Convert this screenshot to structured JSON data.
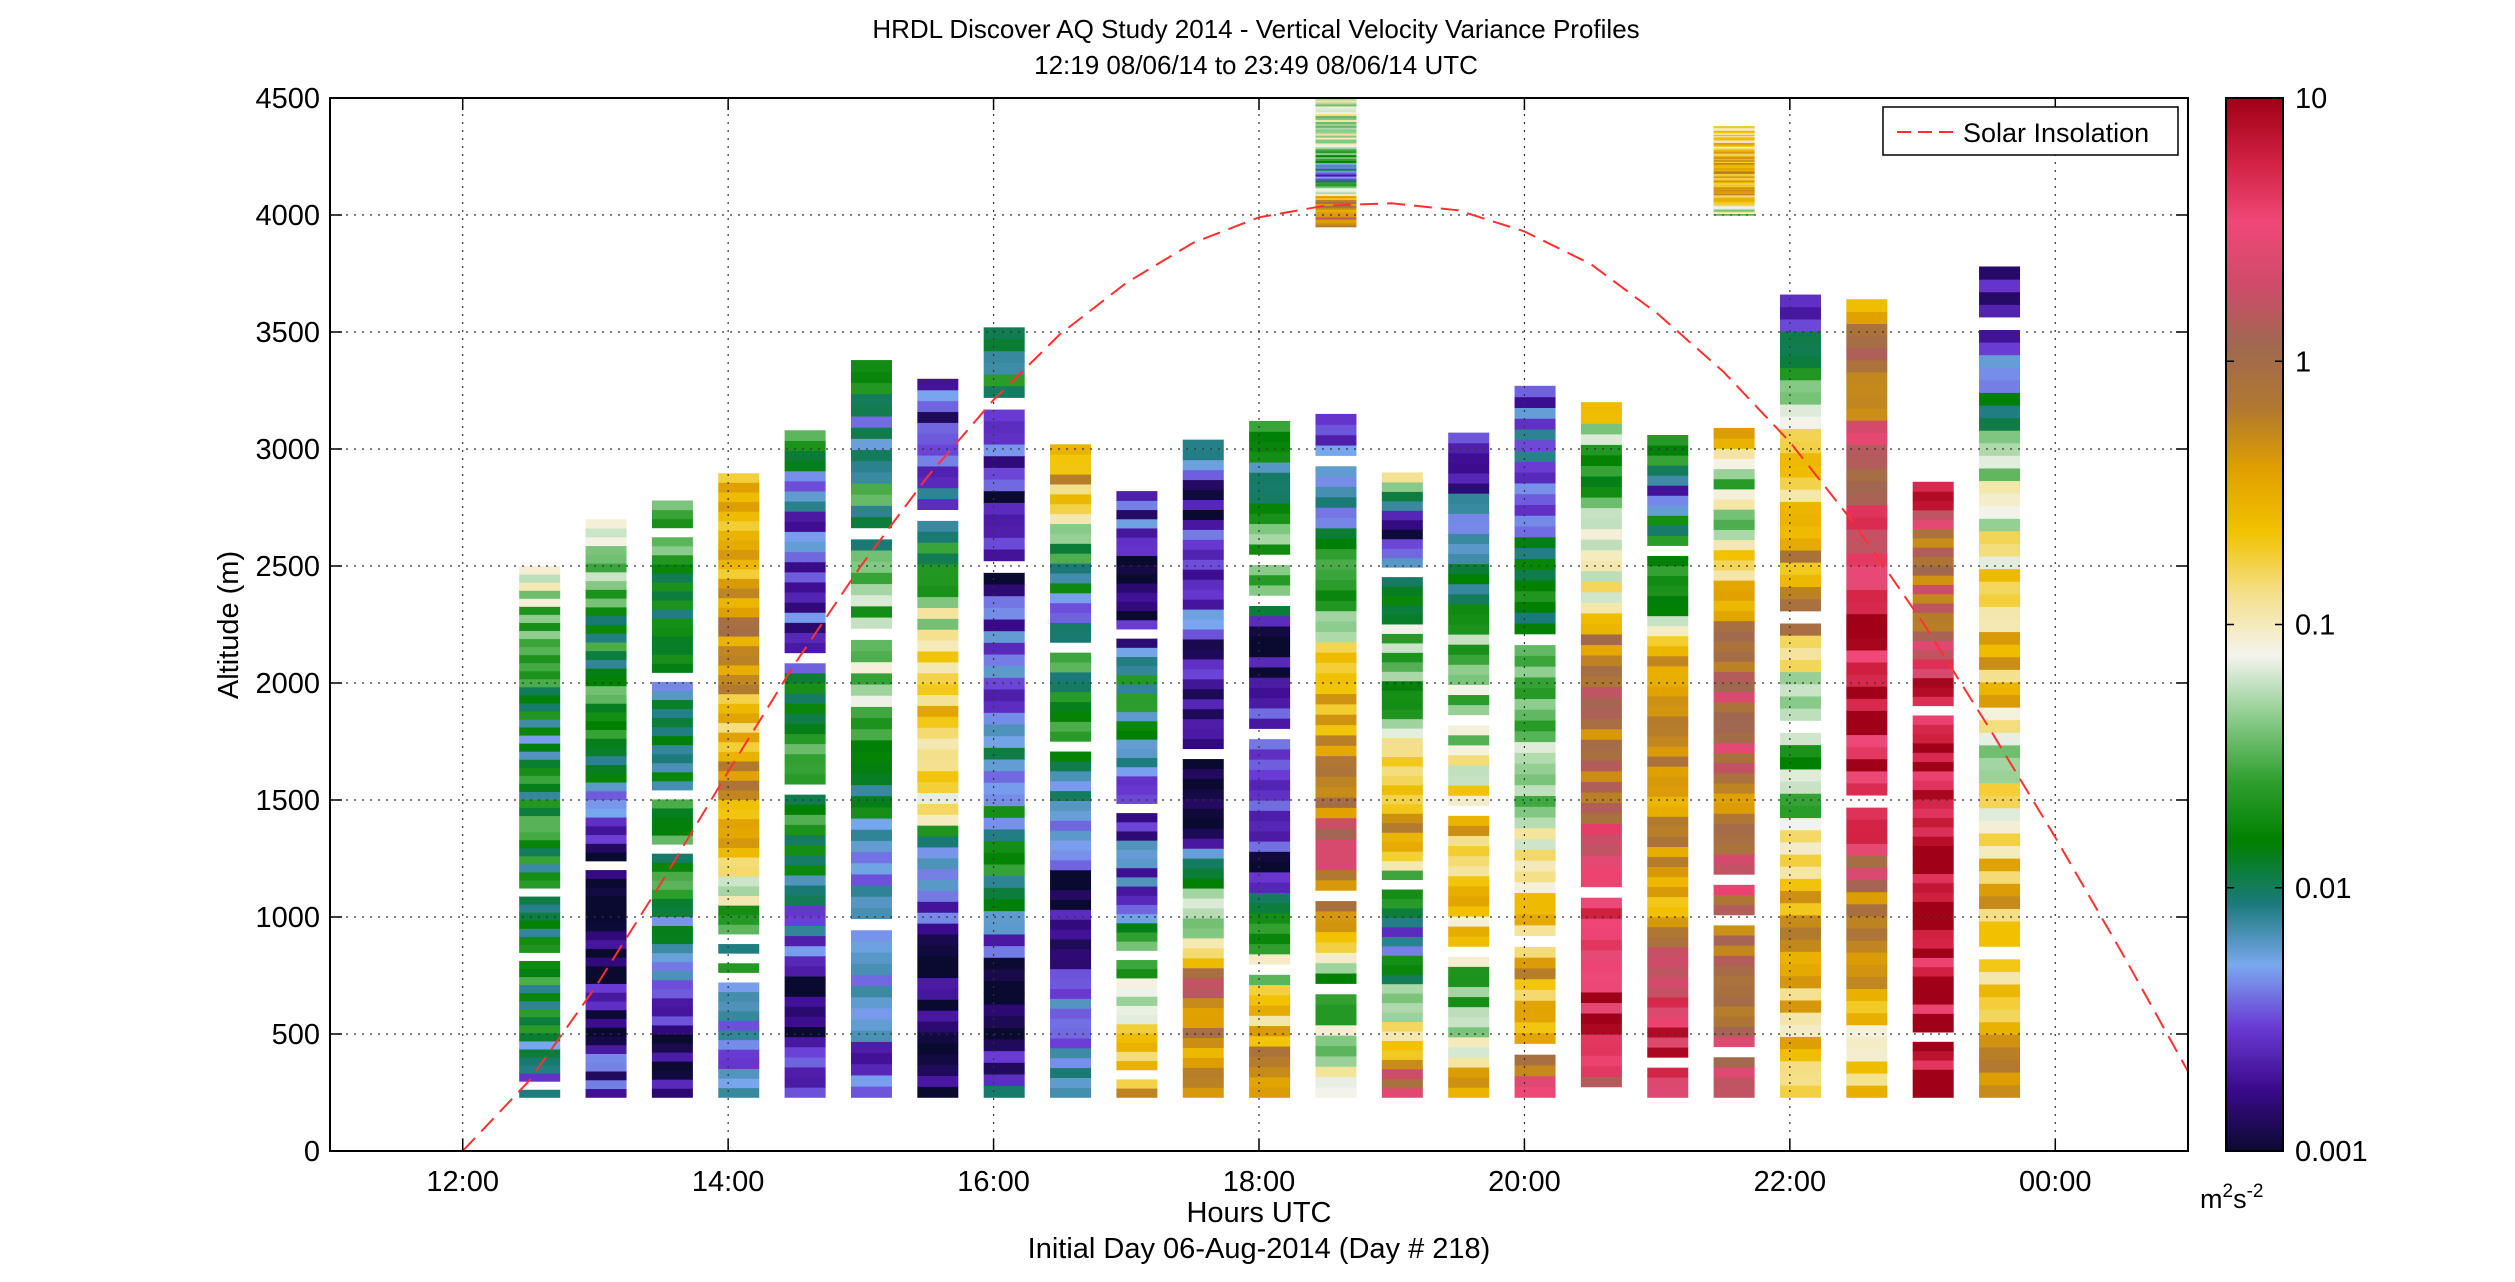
{
  "chart_data": {
    "type": "heatmap",
    "title": [
      "HRDL Discover AQ Study 2014 - Vertical Velocity Variance Profiles",
      "12:19 08/06/14 to 23:49 08/06/14  UTC"
    ],
    "xlabel": "Hours UTC",
    "xlabel2": "Initial Day 06-Aug-2014 (Day # 218)",
    "ylabel": "Altitude (m)",
    "xlim": [
      11.0,
      25.0
    ],
    "ylim": [
      0,
      4500
    ],
    "x_ticks": [
      12,
      14,
      16,
      18,
      20,
      22,
      24
    ],
    "x_tick_labels": [
      "12:00",
      "14:00",
      "16:00",
      "18:00",
      "20:00",
      "22:00",
      "00:00"
    ],
    "y_ticks": [
      0,
      500,
      1000,
      1500,
      2000,
      2500,
      3000,
      3500,
      4000,
      4500
    ],
    "y_tick_labels": [
      "0",
      "500",
      "1000",
      "1500",
      "2000",
      "2500",
      "3000",
      "3500",
      "4000",
      "4500"
    ],
    "grid": true,
    "colorbar": {
      "scale": "log",
      "range": [
        0.001,
        10
      ],
      "ticks": [
        0.001,
        0.01,
        0.1,
        1,
        10
      ],
      "tick_labels": [
        "0.001",
        "0.01",
        "0.1",
        "1",
        "10"
      ],
      "unit_base": "m",
      "unit_exp1": "2",
      "unit_mid": "s",
      "unit_exp2": "-2",
      "colors": [
        "#0a0a30",
        "#3a0a8c",
        "#6a3ad4",
        "#7aa8f0",
        "#1a7a7a",
        "#008000",
        "#30a030",
        "#8ccc8c",
        "#f4f4ee",
        "#f4e08a",
        "#f2c200",
        "#e0a000",
        "#b07830",
        "#a06850",
        "#d04a6a",
        "#f04878",
        "#d02040",
        "#a00018"
      ]
    },
    "legend": {
      "position": "top-right",
      "entries": [
        {
          "label": "Solar Insolation",
          "style": "dashed",
          "color": "#ff4040"
        }
      ]
    },
    "profiles": [
      {
        "time": 12.58,
        "bottom": 230,
        "top": 2500,
        "levels": [
          0.004,
          0.01,
          0.015,
          0.02,
          0.015,
          0.012,
          0.02,
          0.015,
          0.006,
          0.02,
          0.03,
          0.04,
          0.06
        ]
      },
      {
        "time": 13.08,
        "bottom": 230,
        "top": 2700,
        "levels": [
          0.004,
          0.002,
          0.0015,
          0.001,
          0.001,
          0.0012,
          0.003,
          0.012,
          0.02,
          0.015,
          0.02,
          0.03,
          0.08
        ]
      },
      {
        "time": 13.58,
        "bottom": 230,
        "top": 2780,
        "levels": [
          0.0012,
          0.001,
          0.003,
          0.006,
          0.015,
          0.02,
          0.015,
          0.01,
          0.006,
          0.02,
          0.015,
          0.02,
          0.05
        ]
      },
      {
        "time": 14.08,
        "bottom": 230,
        "top": 2940,
        "levels": [
          0.004,
          0.003,
          0.01,
          0.012,
          0.1,
          0.4,
          0.35,
          0.3,
          0.4,
          0.5,
          0.3,
          0.25,
          0.15
        ]
      },
      {
        "time": 14.58,
        "bottom": 230,
        "top": 3080,
        "levels": [
          0.002,
          0.0015,
          0.001,
          0.004,
          0.01,
          0.02,
          0.03,
          0.02,
          0.003,
          0.002,
          0.003,
          0.004,
          0.05
        ]
      },
      {
        "time": 15.08,
        "bottom": 230,
        "top": 3380,
        "levels": [
          0.002,
          0.003,
          0.004,
          0.004,
          0.006,
          0.015,
          0.02,
          0.06,
          0.04,
          0.02,
          0.015,
          0.004,
          0.05
        ]
      },
      {
        "time": 15.58,
        "bottom": 230,
        "top": 3300,
        "levels": [
          0.0012,
          0.0011,
          0.001,
          0.002,
          0.008,
          0.12,
          0.25,
          0.15,
          0.06,
          0.02,
          0.005,
          0.003,
          0.002
        ]
      },
      {
        "time": 16.08,
        "bottom": 230,
        "top": 3520,
        "levels": [
          0.005,
          0.001,
          0.001,
          0.02,
          0.012,
          0.006,
          0.005,
          0.003,
          0.002,
          0.0012,
          0.003,
          0.01,
          0.02
        ]
      },
      {
        "time": 16.58,
        "bottom": 230,
        "top": 3020,
        "levels": [
          0.015,
          0.004,
          0.003,
          0.002,
          0.001,
          0.006,
          0.012,
          0.02,
          0.015,
          0.005,
          0.02,
          0.25,
          0.5
        ]
      },
      {
        "time": 17.08,
        "bottom": 230,
        "top": 2820,
        "levels": [
          0.3,
          0.25,
          0.06,
          0.02,
          0.004,
          0.003,
          0.003,
          0.006,
          0.02,
          0.003,
          0.0015,
          0.002,
          0.004
        ]
      },
      {
        "time": 17.58,
        "bottom": 230,
        "top": 3040,
        "levels": [
          0.8,
          0.5,
          1.2,
          0.06,
          0.02,
          0.001,
          0.001,
          0.001,
          0.002,
          0.003,
          0.002,
          0.0015,
          0.01
        ]
      },
      {
        "time": 18.08,
        "bottom": 230,
        "top": 3120,
        "levels": [
          0.3,
          0.4,
          0.08,
          0.02,
          0.002,
          0.002,
          0.003,
          0.0015,
          0.001,
          0.02,
          0.03,
          0.006,
          0.04
        ]
      },
      {
        "time": 18.58,
        "bottom": 230,
        "top": 3150,
        "levels": [
          0.08,
          0.06,
          0.02,
          0.5,
          1.2,
          0.8,
          0.4,
          0.3,
          0.08,
          0.02,
          0.01,
          0.003,
          0.002
        ]
      },
      {
        "time": 19.08,
        "bottom": 230,
        "top": 2900,
        "levels": [
          2.5,
          0.3,
          0.04,
          0.004,
          0.02,
          0.3,
          0.4,
          0.06,
          0.03,
          0.04,
          0.005,
          0.001,
          0.15
        ]
      },
      {
        "time": 19.58,
        "bottom": 230,
        "top": 3070,
        "levels": [
          0.4,
          0.1,
          0.03,
          0.15,
          0.2,
          0.3,
          0.08,
          0.05,
          0.03,
          0.02,
          0.006,
          0.003,
          0.002
        ]
      },
      {
        "time": 20.08,
        "bottom": 230,
        "top": 3270,
        "levels": [
          3.0,
          0.2,
          0.3,
          0.25,
          0.08,
          0.06,
          0.04,
          0.03,
          0.02,
          0.015,
          0.004,
          0.005,
          0.002
        ]
      },
      {
        "time": 20.58,
        "bottom": 230,
        "top": 3200,
        "levels": [
          1.5,
          6.0,
          5.0,
          3.0,
          3.0,
          1.5,
          0.8,
          1.0,
          0.5,
          0.05,
          0.06,
          0.01,
          0.4
        ]
      },
      {
        "time": 21.08,
        "bottom": 230,
        "top": 3060,
        "levels": [
          5.0,
          4.0,
          3.0,
          0.5,
          0.3,
          0.4,
          0.8,
          0.4,
          0.3,
          0.02,
          0.02,
          0.004,
          0.03
        ]
      },
      {
        "time": 21.58,
        "bottom": 230,
        "top": 3090,
        "levels": [
          3.0,
          2.0,
          0.8,
          1.0,
          2.0,
          0.6,
          1.5,
          1.2,
          0.8,
          0.4,
          0.06,
          0.05,
          0.3
        ]
      },
      {
        "time": 22.08,
        "bottom": 230,
        "top": 3660,
        "levels": [
          0.3,
          0.2,
          0.3,
          0.4,
          0.06,
          0.03,
          0.04,
          0.5,
          0.4,
          0.2,
          0.08,
          0.02,
          0.002
        ]
      },
      {
        "time": 22.58,
        "bottom": 230,
        "top": 3640,
        "levels": [
          0.2,
          0.12,
          0.4,
          0.5,
          4.0,
          6.0,
          8.0,
          7.0,
          3.0,
          2.5,
          1.2,
          0.8,
          0.3
        ]
      },
      {
        "time": 23.08,
        "bottom": 230,
        "top": 2860,
        "levels": [
          8.0,
          8.0,
          8.0,
          8.0,
          8.0,
          8.0,
          8.0,
          8.0,
          6.0,
          1.5,
          0.8,
          1.0,
          9.0
        ]
      },
      {
        "time": 23.58,
        "bottom": 230,
        "top": 3780,
        "levels": [
          0.3,
          0.4,
          0.2,
          0.3,
          0.12,
          0.06,
          0.3,
          0.2,
          0.08,
          0.06,
          0.01,
          0.004,
          0.001
        ]
      }
    ],
    "upper_patches": [
      {
        "time": 18.58,
        "bottom": 3950,
        "top": 4500,
        "levels": [
          1.0,
          0.5,
          0.003,
          0.05,
          0.08,
          0.06
        ]
      },
      {
        "time": 21.58,
        "bottom": 4000,
        "top": 4380,
        "levels": [
          0.05,
          0.3,
          0.4,
          0.2,
          0.15
        ]
      }
    ],
    "solar_insolation": {
      "x": [
        12.0,
        12.5,
        13.0,
        13.5,
        14.0,
        14.5,
        15.0,
        15.5,
        16.0,
        16.5,
        17.0,
        17.5,
        18.0,
        18.5,
        19.0,
        19.5,
        20.0,
        20.5,
        21.0,
        21.5,
        22.0,
        22.5,
        23.0,
        23.5,
        24.0,
        24.5,
        25.0
      ],
      "y": [
        0,
        300,
        700,
        1150,
        1620,
        2080,
        2500,
        2880,
        3210,
        3490,
        3710,
        3880,
        3990,
        4040,
        4050,
        4020,
        3930,
        3790,
        3580,
        3330,
        3030,
        2670,
        2260,
        1810,
        1340,
        850,
        340
      ]
    }
  }
}
